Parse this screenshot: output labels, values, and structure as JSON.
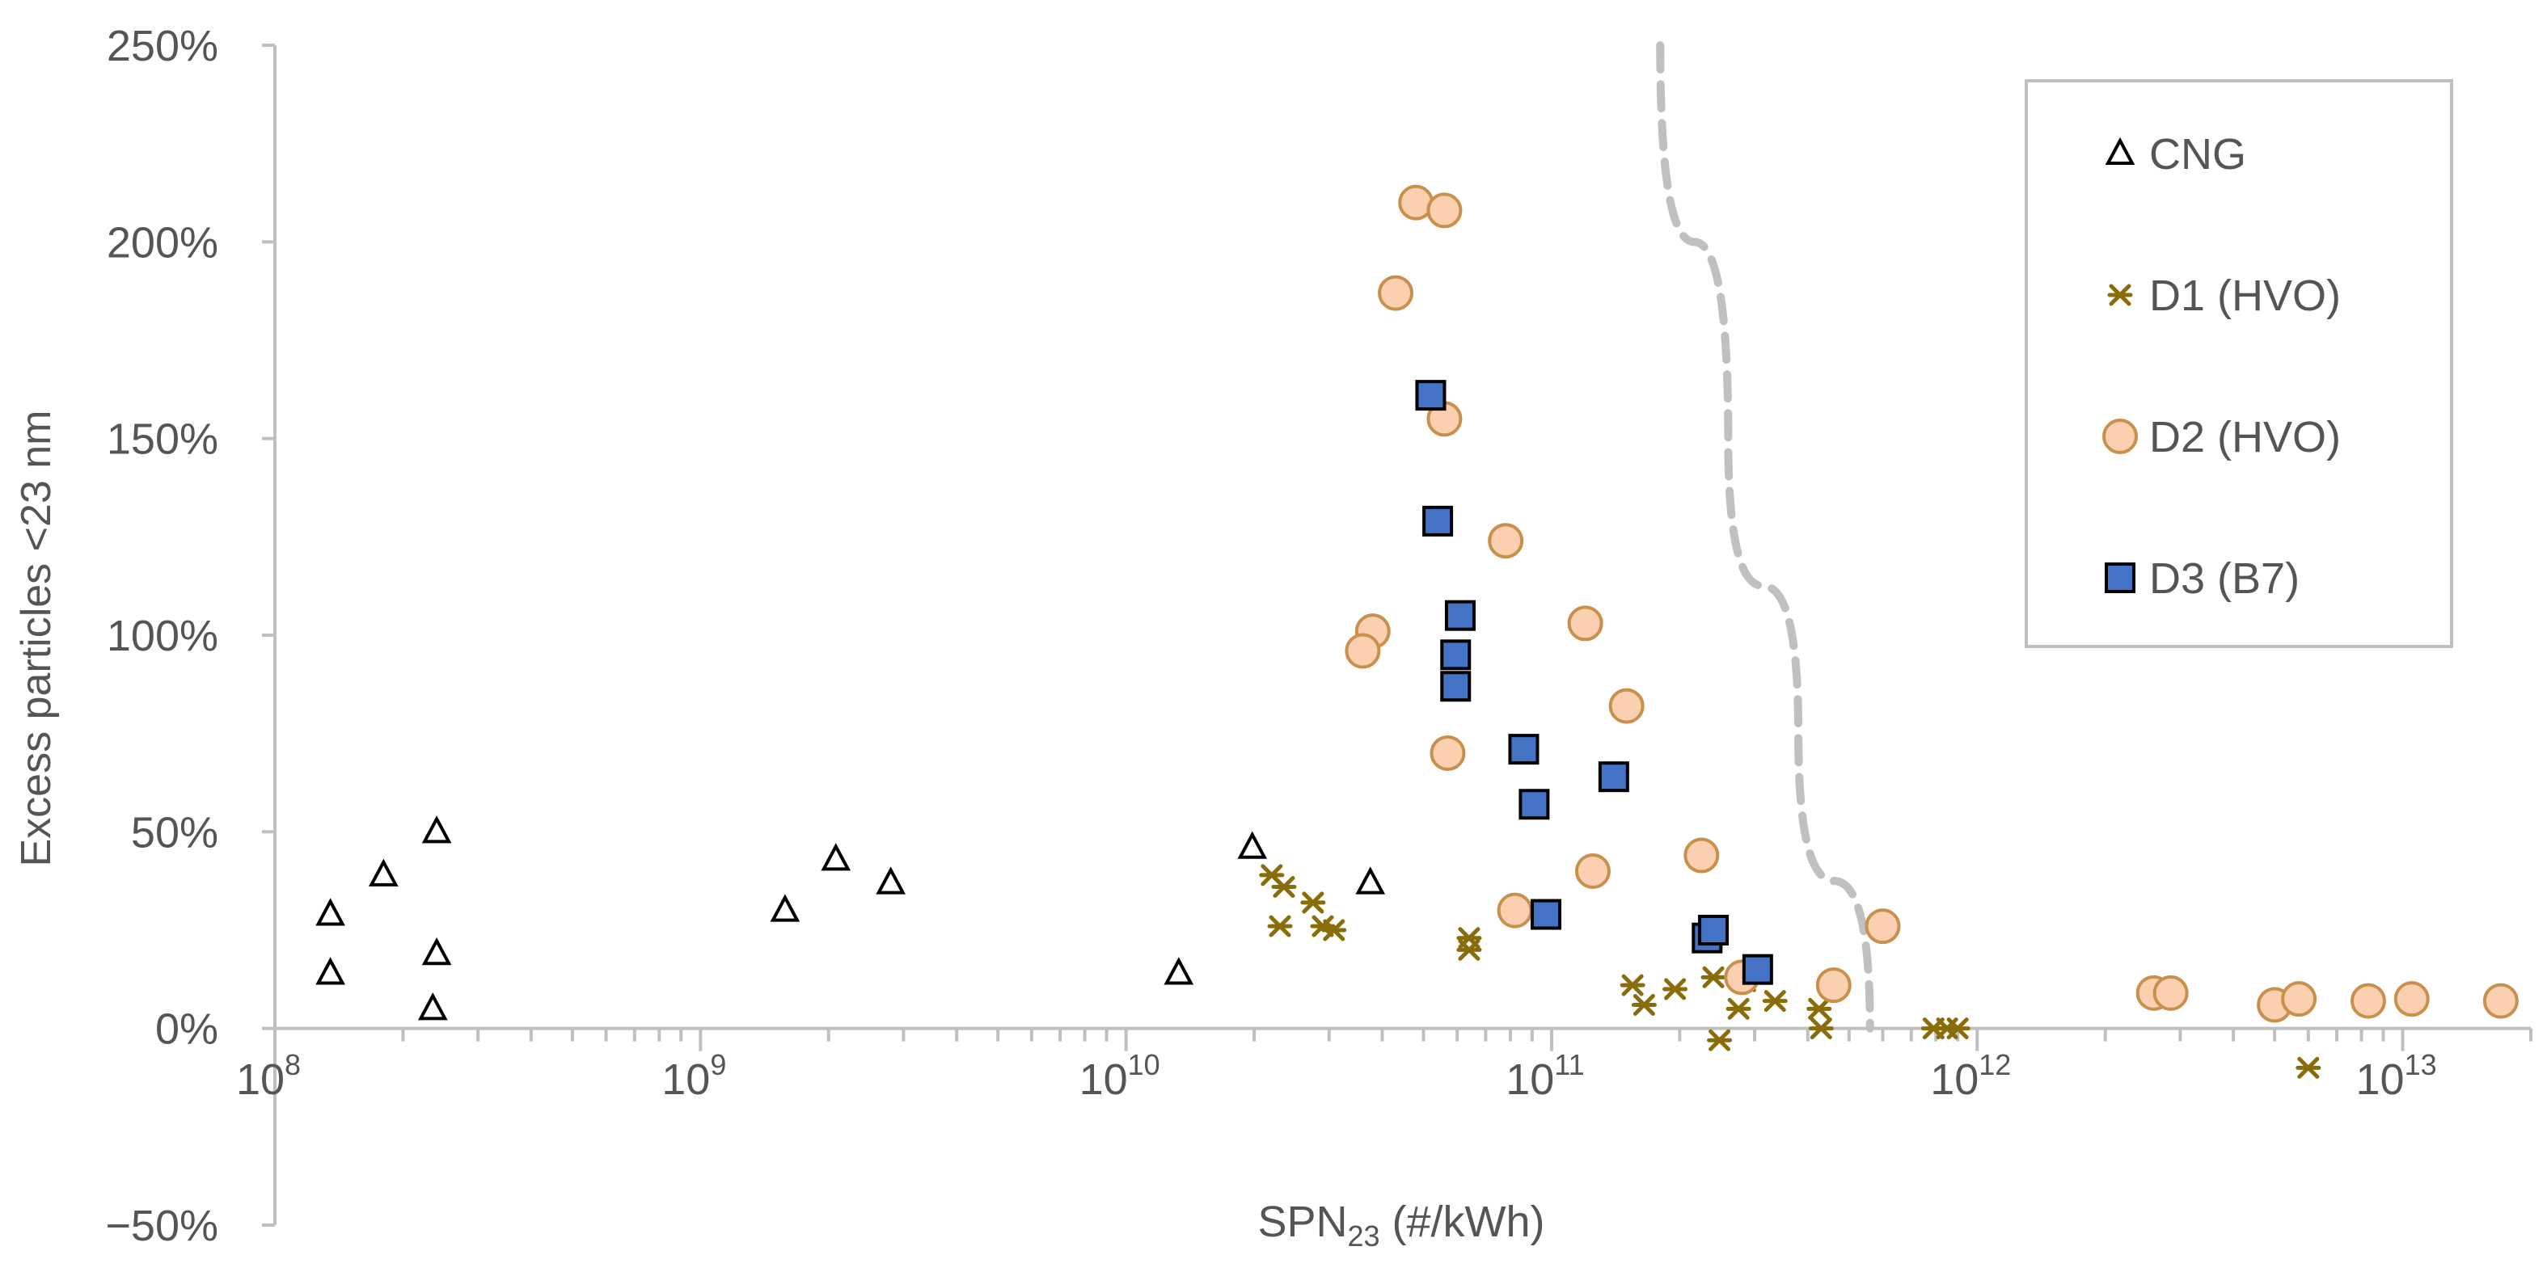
{
  "chart_data": {
    "type": "scatter",
    "title": "",
    "xlabel": "SPN",
    "xlabel_sub": "23",
    "xlabel_suffix": " (#/kWh)",
    "ylabel": "Excess particles <23 nm",
    "x_scale": "log",
    "xlim": [
      100000000,
      20000000000000
    ],
    "ylim": [
      -50,
      250
    ],
    "y_ticks": [
      {
        "value": 250,
        "label": "250%"
      },
      {
        "value": 200,
        "label": "200%"
      },
      {
        "value": 150,
        "label": "150%"
      },
      {
        "value": 100,
        "label": "100%"
      },
      {
        "value": 50,
        "label": "50%"
      },
      {
        "value": 0,
        "label": "0%"
      },
      {
        "value": -50,
        "label": "−50%"
      }
    ],
    "x_ticks": [
      {
        "exponent": 8,
        "base": "10",
        "sup": "8"
      },
      {
        "exponent": 9,
        "base": "10",
        "sup": "9"
      },
      {
        "exponent": 10,
        "base": "10",
        "sup": "10"
      },
      {
        "exponent": 11,
        "base": "10",
        "sup": "11"
      },
      {
        "exponent": 12,
        "base": "10",
        "sup": "12"
      },
      {
        "exponent": 13,
        "base": "10",
        "sup": "13"
      }
    ],
    "legend_position": "top-right",
    "series": [
      {
        "name": "CNG",
        "marker": "triangle",
        "color": "#000000",
        "fill": "#ffffff",
        "points": [
          [
            135000000,
            29
          ],
          [
            135000000,
            14
          ],
          [
            180000000,
            39
          ],
          [
            240000000,
            50
          ],
          [
            240000000,
            19
          ],
          [
            235000000,
            5
          ],
          [
            1580000000,
            30
          ],
          [
            2080000000,
            43
          ],
          [
            2800000000,
            37
          ],
          [
            13300000000,
            14
          ],
          [
            19800000000,
            46
          ],
          [
            37500000000,
            37
          ]
        ]
      },
      {
        "name": "D1 (HVO)",
        "marker": "asterisk",
        "color": "#8a6d0b",
        "fill": "#8a6d0b",
        "points": [
          [
            22000000000,
            39
          ],
          [
            23500000000,
            36
          ],
          [
            23000000000,
            26
          ],
          [
            27500000000,
            32
          ],
          [
            29000000000,
            26
          ],
          [
            30800000000,
            25
          ],
          [
            64000000000,
            23
          ],
          [
            64000000000,
            20
          ],
          [
            155000000000,
            11
          ],
          [
            165000000000,
            6
          ],
          [
            195000000000,
            10
          ],
          [
            240000000000,
            13
          ],
          [
            248000000000,
            -3
          ],
          [
            275000000000,
            5
          ],
          [
            285000000000,
            12
          ],
          [
            335000000000,
            7
          ],
          [
            425000000000,
            5
          ],
          [
            430000000000,
            0
          ],
          [
            790000000000,
            0
          ],
          [
            850000000000,
            0
          ],
          [
            900000000000,
            0
          ],
          [
            6000000000000,
            -10
          ]
        ]
      },
      {
        "name": "D2 (HVO)",
        "marker": "circle",
        "color": "#c8904c",
        "fill": "#fbd0b0",
        "points": [
          [
            48000000000,
            210
          ],
          [
            56000000000,
            208
          ],
          [
            43000000000,
            187
          ],
          [
            56000000000,
            155
          ],
          [
            78000000000,
            124
          ],
          [
            38000000000,
            101
          ],
          [
            36000000000,
            96
          ],
          [
            120000000000,
            103
          ],
          [
            150000000000,
            82
          ],
          [
            57000000000,
            70
          ],
          [
            82000000000,
            30
          ],
          [
            125000000000,
            40
          ],
          [
            225000000000,
            44
          ],
          [
            280000000000,
            13
          ],
          [
            460000000000,
            11
          ],
          [
            600000000000,
            26
          ],
          [
            2600000000000,
            9
          ],
          [
            2850000000000,
            9
          ],
          [
            5000000000000,
            6
          ],
          [
            5700000000000,
            7.5
          ],
          [
            8300000000000,
            7
          ],
          [
            10500000000000,
            7.5
          ],
          [
            17000000000000,
            7
          ]
        ]
      },
      {
        "name": "D3 (B7)",
        "marker": "square",
        "color": "#000000",
        "fill": "#4472c4",
        "points": [
          [
            52000000000,
            161
          ],
          [
            54000000000,
            129
          ],
          [
            61000000000,
            105
          ],
          [
            59500000000,
            95
          ],
          [
            59500000000,
            87
          ],
          [
            86000000000,
            71
          ],
          [
            91000000000,
            57
          ],
          [
            140000000000,
            64
          ],
          [
            97000000000,
            29
          ],
          [
            232000000000,
            23
          ],
          [
            240000000000,
            25
          ],
          [
            305000000000,
            15
          ]
        ]
      }
    ],
    "reference_curve": {
      "style": "dashed",
      "color": "#c0c0c0",
      "points": [
        [
          180000000000,
          250
        ],
        [
          260000000000,
          150
        ],
        [
          380000000000,
          75
        ],
        [
          560000000000,
          0
        ]
      ]
    }
  }
}
